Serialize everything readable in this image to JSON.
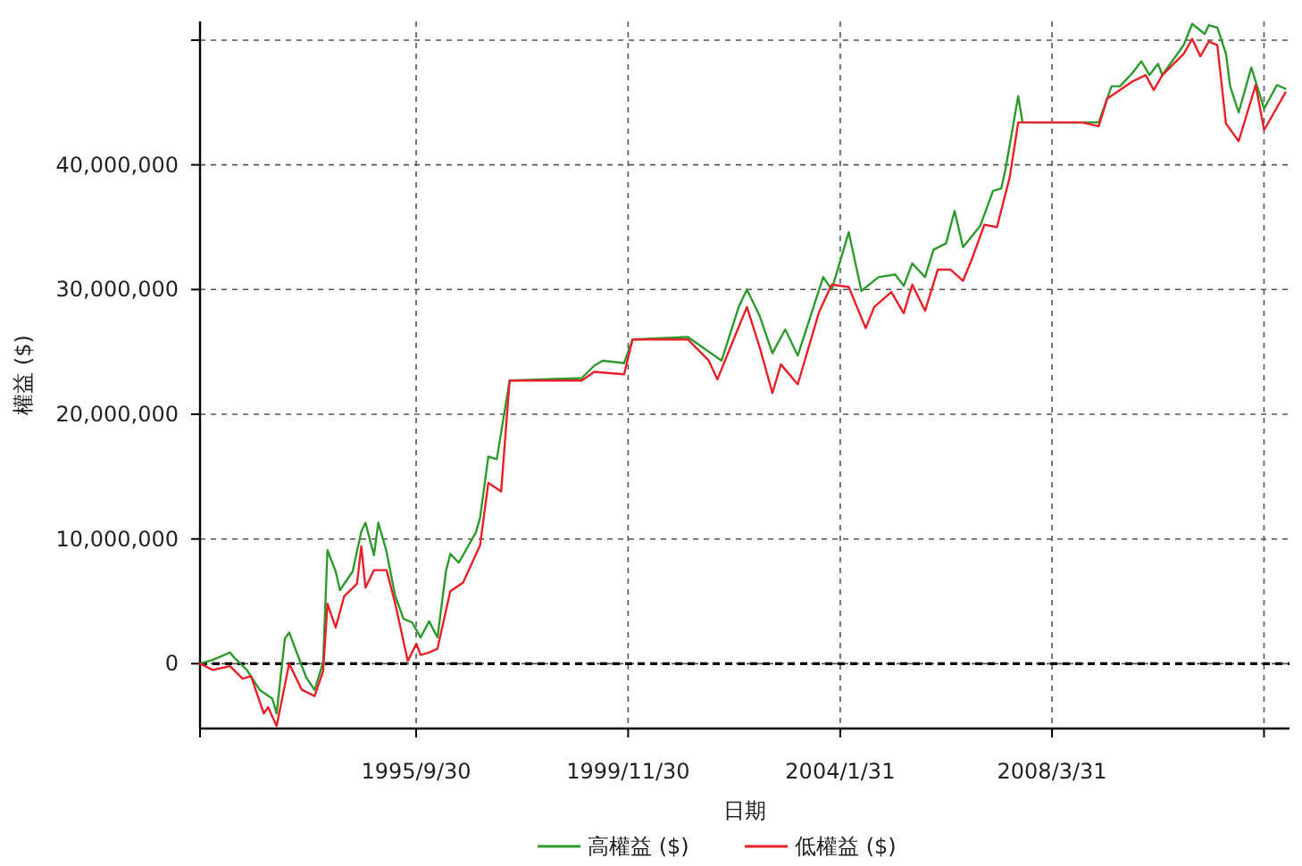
{
  "chart_data": {
    "type": "line",
    "xlabel": "日期",
    "ylabel": "權益 ($)",
    "xlim": [
      "1991-07-01",
      "2012-11-30"
    ],
    "xticks": [
      {
        "value": "1991-07-01",
        "label": null
      },
      {
        "value": "1995-09-30",
        "label": "1995/9/30"
      },
      {
        "value": "1999-11-30",
        "label": "1999/11/30"
      },
      {
        "value": "2004-01-31",
        "label": "2004/1/31"
      },
      {
        "value": "2008-03-31",
        "label": "2008/3/31"
      },
      {
        "value": "2012-05-31",
        "label": null
      }
    ],
    "ylim": [
      -5200000,
      51500000
    ],
    "yticks": [
      {
        "value": 0,
        "label": "0"
      },
      {
        "value": 10000000,
        "label": "10,000,000"
      },
      {
        "value": 20000000,
        "label": "20,000,000"
      },
      {
        "value": 30000000,
        "label": "30,000,000"
      },
      {
        "value": 40000000,
        "label": "40,000,000"
      },
      {
        "value": 50000000,
        "label": null
      }
    ],
    "grid": true,
    "legend": "bottom",
    "ref_lines": [
      {
        "axis": "y",
        "value": 0,
        "color": "#000000",
        "line_style": "dashed"
      }
    ],
    "series": [
      {
        "name": "高權益 ($)",
        "color": "#2e9a2e",
        "x": [
          "1991-07",
          "1991-10",
          "1992-02",
          "1992-03",
          "1992-06",
          "1992-09",
          "1992-12",
          "1993-01",
          "1993-03",
          "1993-04",
          "1993-08",
          "1993-10",
          "1993-12",
          "1994-01",
          "1994-03",
          "1994-04",
          "1994-07",
          "1994-09",
          "1994-10",
          "1994-12",
          "1995-01",
          "1995-03",
          "1995-05",
          "1995-07",
          "1995-09",
          "1995-11",
          "1996-01",
          "1996-03",
          "1996-05",
          "1996-06",
          "1996-08",
          "1996-12",
          "1997-01",
          "1997-03",
          "1997-05",
          "1997-08",
          "1999-01",
          "1999-04",
          "1999-06",
          "1999-11",
          "2000-01",
          "2001-02",
          "2001-10",
          "2002-02",
          "2002-04",
          "2002-07",
          "2002-10",
          "2003-01",
          "2003-04",
          "2003-08",
          "2003-10",
          "2003-12",
          "2004-04",
          "2004-07",
          "2004-11",
          "2005-03",
          "2005-05",
          "2005-07",
          "2005-10",
          "2005-12",
          "2006-03",
          "2006-05",
          "2006-07",
          "2006-11",
          "2007-02",
          "2007-04",
          "2007-05",
          "2007-08",
          "2007-09",
          "2008-11",
          "2009-03",
          "2009-06",
          "2009-08",
          "2009-11",
          "2010-01",
          "2010-03",
          "2010-05",
          "2010-06",
          "2010-11",
          "2011-01",
          "2011-04",
          "2011-05",
          "2011-07",
          "2011-09",
          "2011-10",
          "2011-12",
          "2012-03",
          "2012-06",
          "2012-09",
          "2012-11"
        ],
        "values": [
          0,
          300000,
          900000,
          500000,
          -500000,
          -2100000,
          -2800000,
          -4000000,
          2000000,
          2500000,
          -1100000,
          -2100000,
          100000,
          9100000,
          7400000,
          5900000,
          7400000,
          10600000,
          11300000,
          8700000,
          11300000,
          9000000,
          5500000,
          3600000,
          3300000,
          2100000,
          3400000,
          2100000,
          7400000,
          8800000,
          8100000,
          10500000,
          11700000,
          16600000,
          16400000,
          22700000,
          22900000,
          23900000,
          24300000,
          24100000,
          26000000,
          26200000,
          24300000,
          28600000,
          30000000,
          27900000,
          24900000,
          26800000,
          24700000,
          28900000,
          31000000,
          30000000,
          34600000,
          29900000,
          31000000,
          31200000,
          30300000,
          32100000,
          31000000,
          33200000,
          33700000,
          36300000,
          33400000,
          35100000,
          37900000,
          38100000,
          39600000,
          45500000,
          43400000,
          43400000,
          43400000,
          46300000,
          46300000,
          47400000,
          48300000,
          47200000,
          48100000,
          47200000,
          49600000,
          51300000,
          50500000,
          51200000,
          51000000,
          48900000,
          46300000,
          44200000,
          47800000,
          44500000,
          46400000,
          46100000
        ]
      },
      {
        "name": "低權益 ($)",
        "color": "#e8202a",
        "x": [
          "1991-07",
          "1991-10",
          "1992-02",
          "1992-05",
          "1992-07",
          "1992-10",
          "1992-11",
          "1993-01",
          "1993-04",
          "1993-07",
          "1993-10",
          "1993-12",
          "1994-01",
          "1994-03",
          "1994-05",
          "1994-08",
          "1994-09",
          "1994-10",
          "1994-12",
          "1995-03",
          "1995-05",
          "1995-08",
          "1995-10",
          "1995-11",
          "1996-01",
          "1996-03",
          "1996-06",
          "1996-09",
          "1997-01",
          "1997-03",
          "1997-06",
          "1997-08",
          "1999-01",
          "1999-04",
          "1999-11",
          "2000-01",
          "2001-02",
          "2001-07",
          "2001-09",
          "2002-02",
          "2002-04",
          "2002-07",
          "2002-10",
          "2002-12",
          "2003-04",
          "2003-09",
          "2003-12",
          "2004-04",
          "2004-08",
          "2004-10",
          "2005-02",
          "2005-05",
          "2005-07",
          "2005-10",
          "2006-01",
          "2006-04",
          "2006-07",
          "2006-09",
          "2006-12",
          "2007-03",
          "2007-06",
          "2007-08",
          "2008-11",
          "2009-03",
          "2009-05",
          "2009-11",
          "2010-02",
          "2010-04",
          "2010-06",
          "2010-11",
          "2011-01",
          "2011-03",
          "2011-05",
          "2011-07",
          "2011-09",
          "2011-12",
          "2012-04",
          "2012-06",
          "2012-11"
        ],
        "values": [
          0,
          -500000,
          -200000,
          -1200000,
          -1000000,
          -4000000,
          -3500000,
          -5000000,
          0,
          -2100000,
          -2600000,
          -600000,
          4800000,
          2900000,
          5400000,
          6400000,
          9400000,
          6100000,
          7500000,
          7500000,
          4900000,
          200000,
          1600000,
          700000,
          900000,
          1200000,
          5800000,
          6500000,
          9500000,
          14500000,
          13800000,
          22700000,
          22700000,
          23400000,
          23200000,
          26000000,
          26000000,
          24300000,
          22800000,
          27000000,
          28600000,
          25400000,
          21700000,
          24000000,
          22400000,
          28200000,
          30400000,
          30200000,
          26900000,
          28600000,
          29800000,
          28100000,
          30400000,
          28300000,
          31600000,
          31600000,
          30700000,
          32400000,
          35200000,
          35000000,
          39000000,
          43400000,
          43400000,
          43100000,
          45300000,
          46700000,
          47200000,
          46000000,
          47200000,
          48900000,
          50100000,
          48700000,
          49900000,
          49600000,
          43300000,
          41900000,
          46400000,
          42800000,
          45800000
        ]
      }
    ]
  }
}
